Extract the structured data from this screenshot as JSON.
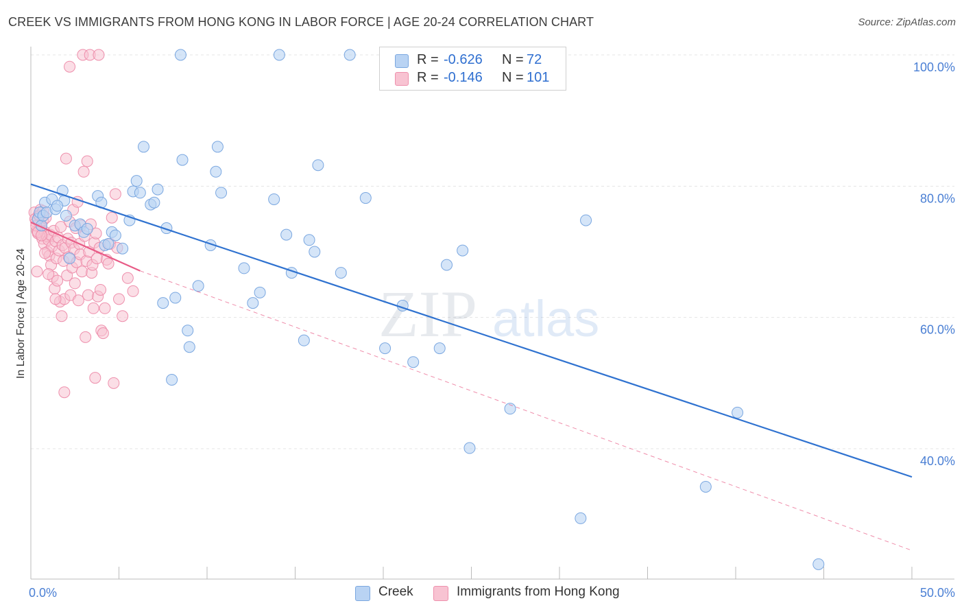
{
  "title": "CREEK VS IMMIGRANTS FROM HONG KONG IN LABOR FORCE | AGE 20-24 CORRELATION CHART",
  "source": "Source: ZipAtlas.com",
  "watermark": {
    "zip": "ZIP",
    "atlas": "atlas"
  },
  "colors": {
    "creek_fill": "#b9d3f3",
    "creek_stroke": "#7aa7e0",
    "creek_line": "#2f72d0",
    "hk_fill": "#f8c3d2",
    "hk_stroke": "#ee8fac",
    "hk_line": "#e85b86",
    "tick": "#4a7fd4",
    "grid": "#e4e4e4"
  },
  "legend": [
    {
      "r_label": "R =",
      "r_value": "-0.626",
      "n_label": "N =",
      "n_value": "72"
    },
    {
      "r_label": "R =",
      "r_value": "-0.146",
      "n_label": "N =",
      "n_value": "101"
    }
  ],
  "chart_data": {
    "type": "scatter",
    "ylabel": "In Labor Force | Age 20-24",
    "xlim": [
      0,
      50
    ],
    "ylim": [
      22,
      103
    ],
    "x_tick_labels": [
      "0.0%",
      "50.0%"
    ],
    "y_ticks": [
      40,
      60,
      80,
      100
    ],
    "y_tick_labels": [
      "40.0%",
      "60.0%",
      "80.0%",
      "100.0%"
    ],
    "grid": true,
    "legend_position": "top-center",
    "series": [
      {
        "name": "Creek",
        "trend": {
          "x": [
            0,
            50
          ],
          "y": [
            80.3,
            35.7
          ],
          "style": "solid"
        },
        "points": [
          [
            0.4,
            75
          ],
          [
            0.5,
            76
          ],
          [
            0.6,
            74
          ],
          [
            0.7,
            75.5
          ],
          [
            0.8,
            77.5
          ],
          [
            0.9,
            76
          ],
          [
            1.2,
            78
          ],
          [
            1.4,
            76.5
          ],
          [
            1.8,
            79.3
          ],
          [
            1.9,
            77.8
          ],
          [
            2.2,
            69
          ],
          [
            2.5,
            74
          ],
          [
            2.8,
            74.2
          ],
          [
            3.0,
            73
          ],
          [
            3.2,
            73.5
          ],
          [
            3.8,
            78.5
          ],
          [
            4.0,
            77.5
          ],
          [
            4.2,
            71
          ],
          [
            4.4,
            71.2
          ],
          [
            4.6,
            73
          ],
          [
            4.8,
            72.5
          ],
          [
            5.2,
            70.5
          ],
          [
            5.6,
            74.8
          ],
          [
            5.8,
            79.2
          ],
          [
            6.0,
            80.8
          ],
          [
            6.2,
            79
          ],
          [
            6.4,
            86
          ],
          [
            6.8,
            77.2
          ],
          [
            7.0,
            77.5
          ],
          [
            7.2,
            79.5
          ],
          [
            7.5,
            62.2
          ],
          [
            7.7,
            73.6
          ],
          [
            8.2,
            63
          ],
          [
            8.5,
            100
          ],
          [
            8.6,
            84
          ],
          [
            8.9,
            58
          ],
          [
            9.0,
            55.5
          ],
          [
            9.5,
            64.8
          ],
          [
            10.2,
            71
          ],
          [
            10.5,
            82.2
          ],
          [
            10.6,
            86
          ],
          [
            10.8,
            79
          ],
          [
            12.1,
            67.5
          ],
          [
            12.6,
            62.2
          ],
          [
            13.0,
            63.8
          ],
          [
            13.8,
            78
          ],
          [
            14.1,
            100
          ],
          [
            14.5,
            72.6
          ],
          [
            14.8,
            66.8
          ],
          [
            15.5,
            56.5
          ],
          [
            15.8,
            71.8
          ],
          [
            16.1,
            70
          ],
          [
            16.3,
            83.2
          ],
          [
            17.6,
            66.8
          ],
          [
            18.1,
            100
          ],
          [
            19.0,
            78.2
          ],
          [
            20.1,
            55.3
          ],
          [
            21.1,
            61.8
          ],
          [
            21.7,
            53.2
          ],
          [
            23.2,
            55.3
          ],
          [
            23.6,
            68
          ],
          [
            24.5,
            70.2
          ],
          [
            24.9,
            40.1
          ],
          [
            27.2,
            46.1
          ],
          [
            31.2,
            29.4
          ],
          [
            31.5,
            74.8
          ],
          [
            38.3,
            34.2
          ],
          [
            40.1,
            45.5
          ],
          [
            44.7,
            22.4
          ],
          [
            8.0,
            50.5
          ],
          [
            2.0,
            75.5
          ],
          [
            1.5,
            77.0
          ]
        ]
      },
      {
        "name": "Immigrants from Hong Kong",
        "trend": {
          "x": [
            0,
            6.2
          ],
          "y": [
            74.5,
            67.1
          ],
          "style": "solid",
          "dashed_extension": {
            "x": [
              6.2,
              50
            ],
            "y": [
              67.1,
              24.5
            ]
          }
        },
        "points": [
          [
            0.2,
            76
          ],
          [
            0.25,
            75
          ],
          [
            0.3,
            74.5
          ],
          [
            0.35,
            73.2
          ],
          [
            0.4,
            72.8
          ],
          [
            0.45,
            75.6
          ],
          [
            0.5,
            74.2
          ],
          [
            0.55,
            76.4
          ],
          [
            0.6,
            73.6
          ],
          [
            0.65,
            72
          ],
          [
            0.7,
            74.8
          ],
          [
            0.75,
            71.2
          ],
          [
            0.8,
            73
          ],
          [
            0.85,
            75.2
          ],
          [
            0.9,
            72.4
          ],
          [
            0.95,
            70
          ],
          [
            1.0,
            71.8
          ],
          [
            1.05,
            69.4
          ],
          [
            1.1,
            72.6
          ],
          [
            1.15,
            68
          ],
          [
            1.2,
            70.8
          ],
          [
            1.25,
            66.2
          ],
          [
            1.3,
            73.2
          ],
          [
            1.35,
            64.4
          ],
          [
            1.4,
            71.6
          ],
          [
            1.45,
            69
          ],
          [
            1.5,
            65.6
          ],
          [
            1.55,
            72.2
          ],
          [
            1.6,
            70.2
          ],
          [
            1.65,
            62.4
          ],
          [
            1.7,
            73.8
          ],
          [
            1.75,
            60.2
          ],
          [
            1.8,
            71
          ],
          [
            1.85,
            68.6
          ],
          [
            1.9,
            62.8
          ],
          [
            1.95,
            70.6
          ],
          [
            2.0,
            84.2
          ],
          [
            2.05,
            66.4
          ],
          [
            2.1,
            72
          ],
          [
            2.15,
            69.2
          ],
          [
            2.2,
            74.6
          ],
          [
            2.25,
            63.4
          ],
          [
            2.3,
            71.4
          ],
          [
            2.35,
            67.6
          ],
          [
            2.4,
            76.4
          ],
          [
            2.45,
            70.4
          ],
          [
            2.5,
            65.2
          ],
          [
            2.55,
            73.6
          ],
          [
            2.6,
            68.4
          ],
          [
            2.65,
            77.6
          ],
          [
            2.7,
            62.6
          ],
          [
            2.75,
            71.2
          ],
          [
            2.8,
            69.6
          ],
          [
            2.85,
            74
          ],
          [
            2.9,
            67
          ],
          [
            2.95,
            100
          ],
          [
            3.0,
            82.2
          ],
          [
            3.05,
            72.4
          ],
          [
            3.1,
            57
          ],
          [
            3.15,
            68.6
          ],
          [
            3.2,
            83.8
          ],
          [
            3.25,
            63.4
          ],
          [
            3.3,
            70
          ],
          [
            3.35,
            100
          ],
          [
            3.4,
            74.2
          ],
          [
            3.45,
            66.8
          ],
          [
            3.5,
            68
          ],
          [
            3.55,
            61.4
          ],
          [
            3.6,
            71.4
          ],
          [
            3.65,
            50.8
          ],
          [
            3.7,
            72.8
          ],
          [
            3.75,
            69
          ],
          [
            3.8,
            63.2
          ],
          [
            3.85,
            100
          ],
          [
            3.9,
            70.6
          ],
          [
            3.95,
            64.2
          ],
          [
            4.0,
            58
          ],
          [
            4.1,
            57.6
          ],
          [
            4.2,
            61.4
          ],
          [
            4.3,
            68.8
          ],
          [
            4.4,
            68.2
          ],
          [
            4.5,
            71.2
          ],
          [
            4.6,
            75.2
          ],
          [
            4.7,
            50
          ],
          [
            4.8,
            78.8
          ],
          [
            4.9,
            70.6
          ],
          [
            5.0,
            62.8
          ],
          [
            5.2,
            60.2
          ],
          [
            5.5,
            66
          ],
          [
            5.8,
            64
          ],
          [
            0.3,
            74
          ],
          [
            0.4,
            73
          ],
          [
            0.5,
            75.5
          ],
          [
            0.6,
            72.5
          ],
          [
            0.7,
            76.2
          ],
          [
            2.2,
            98.2
          ],
          [
            1.9,
            48.6
          ],
          [
            1.4,
            62.8
          ],
          [
            1.0,
            66.6
          ],
          [
            0.8,
            69.8
          ],
          [
            0.35,
            67
          ]
        ]
      }
    ]
  }
}
